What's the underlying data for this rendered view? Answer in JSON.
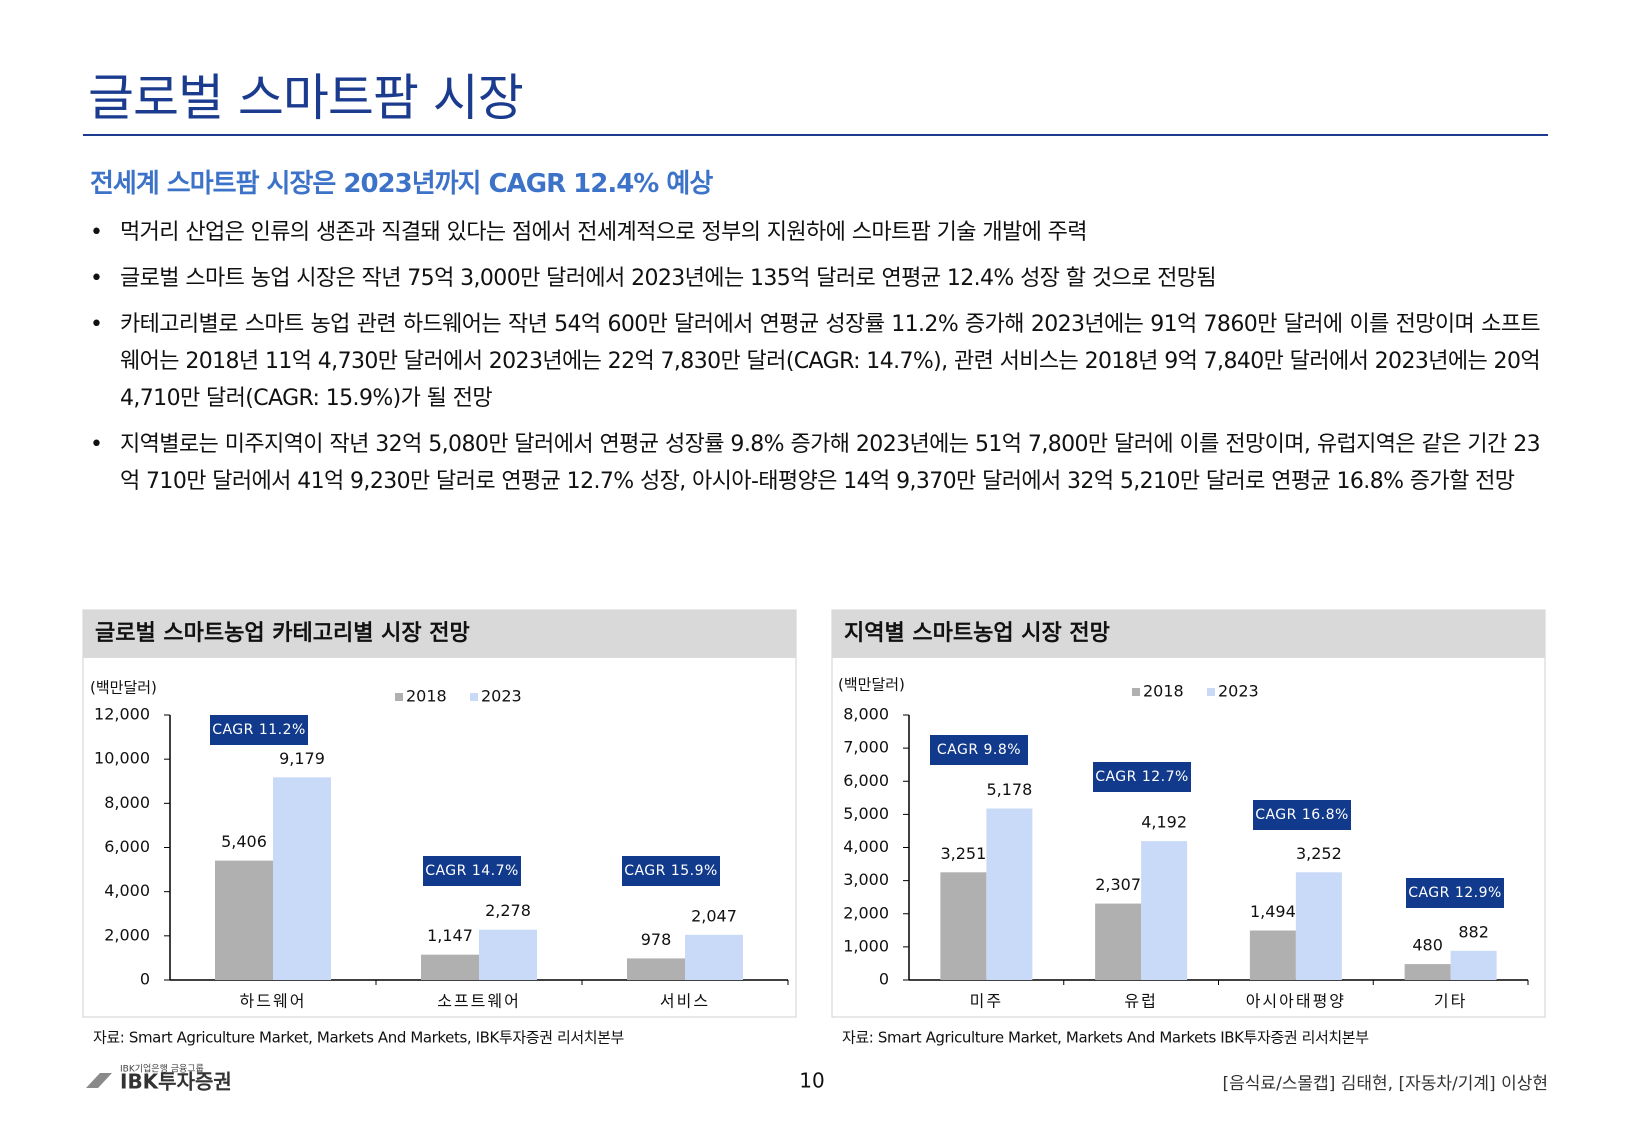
{
  "header": {
    "title": "글로벌 스마트팜 시장",
    "subtitle": "전세계 스마트팜 시장은 2023년까지 CAGR 12.4% 예상"
  },
  "bullets": [
    "먹거리 산업은 인류의 생존과 직결돼 있다는 점에서 전세계적으로 정부의 지원하에 스마트팜 기술 개발에 주력",
    "글로벌 스마트 농업 시장은 작년 75억 3,000만 달러에서 2023년에는 135억 달러로 연평균 12.4% 성장 할 것으로 전망됨",
    "카테고리별로 스마트 농업 관련 하드웨어는 작년 54억 600만 달러에서 연평균 성장률 11.2% 증가해 2023년에는 91억 7860만 달러에 이를 전망이며 소프트웨어는 2018년 11억 4,730만 달러에서 2023년에는 22억 7,830만 달러(CAGR: 14.7%), 관련 서비스는 2018년 9억 7,840만 달러에서 2023년에는 20억 4,710만 달러(CAGR: 15.9%)가 될 전망",
    "지역별로는 미주지역이 작년 32억 5,080만 달러에서 연평균 성장률 9.8% 증가해 2023년에는 51억 7,800만 달러에 이를 전망이며, 유럽지역은 같은 기간 23억 710만 달러에서 41억 9,230만 달러로 연평균 12.7% 성장, 아시아-태평양은 14억 9,370만 달러에서 32억 5,210만 달러로 연평균 16.8% 증가할 전망"
  ],
  "chart_data": [
    {
      "type": "bar",
      "title": "글로벌 스마트농업 카테고리별 시장 전망",
      "unit": "(백만달러)",
      "categories": [
        "하드웨어",
        "소프트웨어",
        "서비스"
      ],
      "series": [
        {
          "name": "2018",
          "color": "#b0b0b0",
          "values": [
            5406,
            1147,
            978
          ],
          "value_labels": [
            "5,406",
            "1,147",
            "978"
          ]
        },
        {
          "name": "2023",
          "color": "#c9daf8",
          "values": [
            9179,
            2278,
            2047
          ],
          "value_labels": [
            "9,179",
            "2,278",
            "2,047"
          ]
        }
      ],
      "ylim": [
        0,
        12000
      ],
      "yticks": [
        0,
        {
          "value": 2000,
          "label": "2,000"
        },
        {
          "value": 4000,
          "label": "4,000"
        },
        {
          "value": 6000,
          "label": "6,000"
        },
        {
          "value": 8000,
          "label": "8,000"
        },
        {
          "value": 10000,
          "label": "10,000"
        },
        {
          "value": 12000,
          "label": "12,000"
        }
      ],
      "annotations": [
        "CAGR 11.2%",
        "CAGR 14.7%",
        "CAGR 15.9%"
      ],
      "source": "자료: Smart Agriculture Market, Markets And Markets, IBK투자증권 리서치본부"
    },
    {
      "type": "bar",
      "title": "지역별 스마트농업 시장 전망",
      "unit": "(백만달러)",
      "categories": [
        "미주",
        "유럽",
        "아시아태평양",
        "기타"
      ],
      "series": [
        {
          "name": "2018",
          "color": "#b0b0b0",
          "values": [
            3251,
            2307,
            1494,
            480
          ],
          "value_labels": [
            "3,251",
            "2,307",
            "1,494",
            "480"
          ]
        },
        {
          "name": "2023",
          "color": "#c9daf8",
          "values": [
            5178,
            4192,
            3252,
            882
          ],
          "value_labels": [
            "5,178",
            "4,192",
            "3,252",
            "882"
          ]
        }
      ],
      "ylim": [
        0,
        8000
      ],
      "yticks": [
        0,
        {
          "value": 1000,
          "label": "1,000"
        },
        {
          "value": 2000,
          "label": "2,000"
        },
        {
          "value": 3000,
          "label": "3,000"
        },
        {
          "value": 4000,
          "label": "4,000"
        },
        {
          "value": 5000,
          "label": "5,000"
        },
        {
          "value": 6000,
          "label": "6,000"
        },
        {
          "value": 7000,
          "label": "7,000"
        },
        {
          "value": 8000,
          "label": "8,000"
        }
      ],
      "annotations": [
        "CAGR 9.8%",
        "CAGR 12.7%",
        "CAGR 16.8%",
        "CAGR 12.9%"
      ],
      "source": "자료: Smart Agriculture Market, Markets And Markets IBK투자증권 리서치본부"
    }
  ],
  "footer": {
    "group": "IBK기업은행 금융그룹",
    "brand": "IBK투자증권",
    "page": 10,
    "authors": "[음식료/스몰캡] 김태현, [자동차/기계] 이상현"
  }
}
